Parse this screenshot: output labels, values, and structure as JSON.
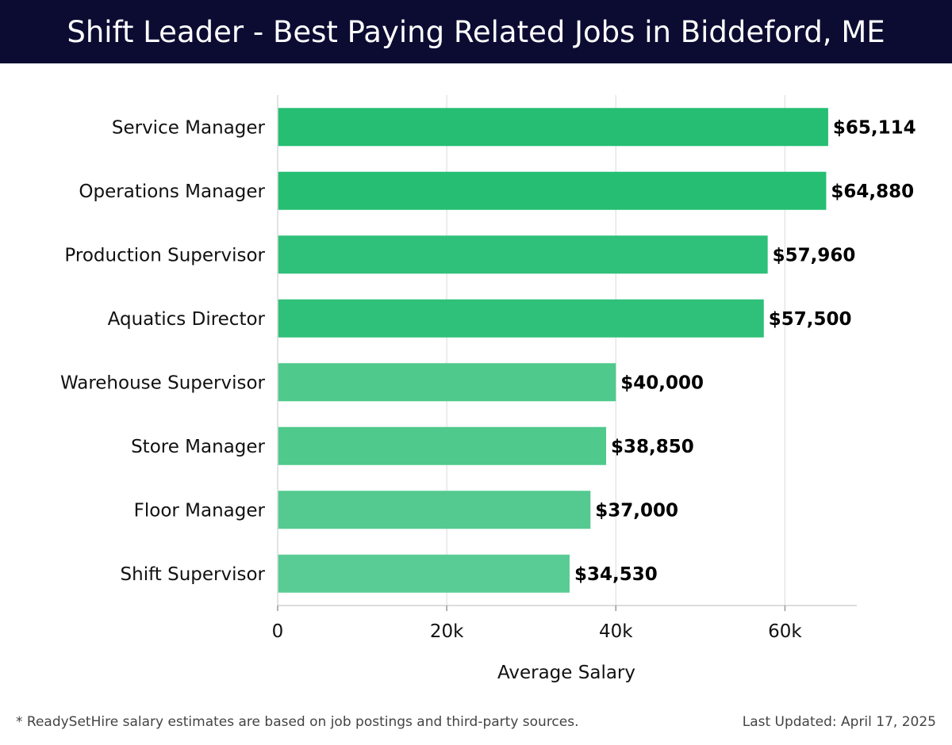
{
  "header": {
    "title": "Shift Leader - Best Paying Related Jobs in Biddeford, ME"
  },
  "chart_data": {
    "type": "bar",
    "orientation": "horizontal",
    "categories": [
      "Service Manager",
      "Operations Manager",
      "Production Supervisor",
      "Aquatics Director",
      "Warehouse Supervisor",
      "Store Manager",
      "Floor Manager",
      "Shift Supervisor"
    ],
    "values": [
      65114,
      64880,
      57960,
      57500,
      40000,
      38850,
      37000,
      34530
    ],
    "value_labels": [
      "$65,114",
      "$64,880",
      "$57,960",
      "$57,500",
      "$40,000",
      "$38,850",
      "$37,000",
      "$34,530"
    ],
    "xlabel": "Average Salary",
    "ylabel": "",
    "xlim": [
      0,
      68500
    ],
    "xticks": [
      0,
      20000,
      40000,
      60000
    ],
    "xtick_labels": [
      "0",
      "20k",
      "40k",
      "60k"
    ],
    "grid": true,
    "bar_colors": [
      "#25be72",
      "#25be72",
      "#2fc079",
      "#2fc079",
      "#4fc98c",
      "#4fc98c",
      "#54ca90",
      "#58cc94"
    ]
  },
  "footer": {
    "note": "* ReadySetHire salary estimates are based on job postings and third-party sources.",
    "updated": "Last Updated: April 17, 2025"
  }
}
